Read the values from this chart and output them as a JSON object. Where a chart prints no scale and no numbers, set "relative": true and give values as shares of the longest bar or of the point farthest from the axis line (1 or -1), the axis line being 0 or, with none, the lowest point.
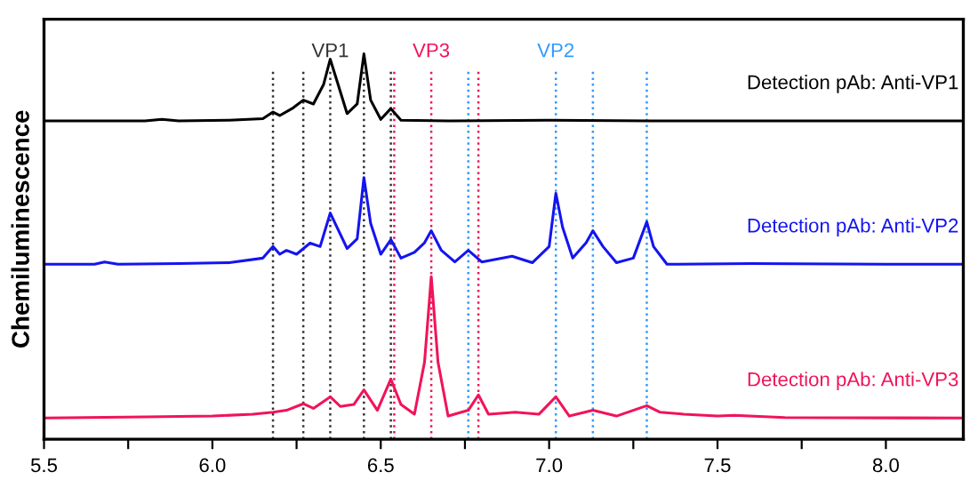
{
  "chart_data": {
    "type": "line",
    "ylabel": "Chemiluminescence",
    "relative": true,
    "legend": false,
    "grid": false,
    "marker": "none",
    "line_style": "solid",
    "tick_labels": "x",
    "xlim": [
      5.5,
      8.23
    ],
    "xticks": [
      5.5,
      {
        "value": 5.75,
        "label": null
      },
      {
        "value": 6.0,
        "label": "6.0"
      },
      {
        "value": 6.25,
        "label": null
      },
      6.5,
      {
        "value": 6.75,
        "label": null
      },
      {
        "value": 7.0,
        "label": "7.0"
      },
      {
        "value": 7.25,
        "label": null
      },
      7.5,
      {
        "value": 7.75,
        "label": null
      },
      {
        "value": 8.0,
        "label": "8.0"
      }
    ],
    "series": [
      {
        "name": "Detection pAb: Anti-VP1",
        "color": "#000000",
        "x": [
          5.5,
          5.8,
          5.85,
          5.9,
          6.05,
          6.15,
          6.18,
          6.2,
          6.24,
          6.27,
          6.3,
          6.33,
          6.35,
          6.37,
          6.4,
          6.43,
          6.45,
          6.47,
          6.5,
          6.53,
          6.56,
          6.7,
          7.0,
          7.3,
          7.6,
          8.23
        ],
        "values": [
          0.826,
          0.826,
          0.83,
          0.826,
          0.828,
          0.832,
          0.849,
          0.84,
          0.86,
          0.88,
          0.87,
          0.92,
          0.986,
          0.93,
          0.845,
          0.87,
          1.0,
          0.88,
          0.83,
          0.858,
          0.828,
          0.826,
          0.828,
          0.826,
          0.826,
          0.826
        ]
      },
      {
        "name": "Detection pAb: Anti-VP2",
        "color": "#1414f0",
        "x": [
          5.5,
          5.65,
          5.68,
          5.72,
          5.9,
          6.05,
          6.15,
          6.18,
          6.2,
          6.22,
          6.25,
          6.29,
          6.32,
          6.35,
          6.37,
          6.4,
          6.43,
          6.45,
          6.47,
          6.5,
          6.53,
          6.56,
          6.6,
          6.63,
          6.65,
          6.68,
          6.72,
          6.76,
          6.8,
          6.89,
          6.95,
          7.0,
          7.02,
          7.04,
          7.07,
          7.11,
          7.13,
          7.16,
          7.2,
          7.25,
          7.29,
          7.31,
          7.35,
          7.6,
          8.0,
          8.23
        ],
        "values": [
          0.454,
          0.454,
          0.46,
          0.454,
          0.456,
          0.458,
          0.47,
          0.5,
          0.48,
          0.49,
          0.48,
          0.509,
          0.5,
          0.587,
          0.55,
          0.495,
          0.52,
          0.679,
          0.56,
          0.48,
          0.518,
          0.47,
          0.485,
          0.51,
          0.541,
          0.49,
          0.46,
          0.49,
          0.46,
          0.475,
          0.458,
          0.5,
          0.638,
          0.55,
          0.47,
          0.51,
          0.541,
          0.5,
          0.458,
          0.47,
          0.564,
          0.5,
          0.454,
          0.456,
          0.454,
          0.454
        ]
      },
      {
        "name": "Detection pAb: Anti-VP3",
        "color": "#f0145a",
        "x": [
          5.5,
          5.8,
          6.0,
          6.12,
          6.18,
          6.22,
          6.27,
          6.3,
          6.35,
          6.38,
          6.42,
          6.45,
          6.49,
          6.53,
          6.56,
          6.6,
          6.63,
          6.65,
          6.67,
          6.7,
          6.76,
          6.79,
          6.82,
          6.9,
          6.97,
          7.02,
          7.06,
          7.13,
          7.2,
          7.29,
          7.33,
          7.4,
          7.5,
          7.55,
          7.7,
          8.23
        ],
        "values": [
          0.055,
          0.058,
          0.06,
          0.065,
          0.07,
          0.075,
          0.092,
          0.08,
          0.11,
          0.085,
          0.09,
          0.128,
          0.075,
          0.156,
          0.09,
          0.065,
          0.2,
          0.422,
          0.2,
          0.06,
          0.075,
          0.115,
          0.065,
          0.07,
          0.065,
          0.11,
          0.06,
          0.075,
          0.06,
          0.087,
          0.07,
          0.065,
          0.06,
          0.062,
          0.056,
          0.055
        ]
      }
    ],
    "ref_lines": [
      {
        "axis": "x",
        "value": 6.18,
        "color": "#333333",
        "line_style": "dotted"
      },
      {
        "axis": "x",
        "value": 6.27,
        "color": "#333333",
        "line_style": "dotted"
      },
      {
        "axis": "x",
        "value": 6.35,
        "color": "#333333",
        "line_style": "dotted",
        "label": "VP1"
      },
      {
        "axis": "x",
        "value": 6.45,
        "color": "#333333",
        "line_style": "dotted"
      },
      {
        "axis": "x",
        "value": 6.53,
        "color": "#333333",
        "line_style": "dotted"
      },
      {
        "axis": "x",
        "value": 6.54,
        "color": "#f0145a",
        "line_style": "dotted"
      },
      {
        "axis": "x",
        "value": 6.65,
        "color": "#f0145a",
        "line_style": "dotted",
        "label": "VP3"
      },
      {
        "axis": "x",
        "value": 6.79,
        "color": "#f0145a",
        "line_style": "dotted"
      },
      {
        "axis": "x",
        "value": 6.76,
        "color": "#3399ff",
        "line_style": "dotted"
      },
      {
        "axis": "x",
        "value": 7.02,
        "color": "#3399ff",
        "line_style": "dotted",
        "label": "VP2"
      },
      {
        "axis": "x",
        "value": 7.13,
        "color": "#3399ff",
        "line_style": "dotted"
      },
      {
        "axis": "x",
        "value": 7.29,
        "color": "#3399ff",
        "line_style": "dotted"
      }
    ]
  }
}
